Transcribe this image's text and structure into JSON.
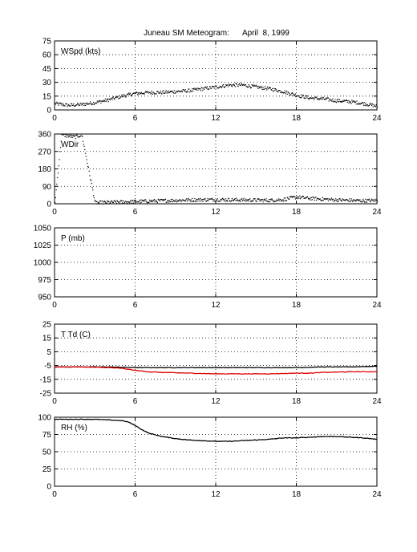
{
  "title": "Juneau SM Meteogram:      April  8, 1999",
  "chart_data": [
    {
      "type": "scatter",
      "label": "WSpd (kts)",
      "xlim": [
        0,
        24
      ],
      "xticks": [
        0,
        6,
        12,
        18,
        24
      ],
      "ylim": [
        0,
        75
      ],
      "yticks": [
        0,
        15,
        30,
        45,
        60,
        75
      ],
      "grid": true,
      "series": [
        {
          "color": "#000000",
          "x": [
            0,
            1,
            2,
            3,
            4,
            5,
            6,
            7,
            8,
            9,
            10,
            11,
            12,
            13,
            14,
            15,
            16,
            17,
            18,
            19,
            20,
            21,
            22,
            23,
            24
          ],
          "y": [
            7,
            5,
            6,
            8,
            11,
            15,
            18,
            19,
            19,
            20,
            21,
            23,
            25,
            27,
            27,
            25,
            23,
            20,
            16,
            13,
            12,
            10,
            9,
            7,
            4
          ]
        }
      ]
    },
    {
      "type": "scatter",
      "label": "WDir",
      "xlim": [
        0,
        24
      ],
      "xticks": [
        0,
        6,
        12,
        18,
        24
      ],
      "ylim": [
        0,
        360
      ],
      "yticks": [
        0,
        90,
        180,
        270,
        360
      ],
      "grid": true,
      "series": [
        {
          "color": "#000000",
          "x": [
            0,
            0.5,
            1,
            1.5,
            2,
            3,
            4,
            5,
            6,
            7,
            8,
            9,
            10,
            11,
            12,
            13,
            14,
            15,
            16,
            17,
            18,
            19,
            20,
            21,
            22,
            23,
            24
          ],
          "y": [
            5,
            355,
            350,
            345,
            355,
            5,
            8,
            10,
            12,
            14,
            16,
            18,
            20,
            21,
            22,
            21,
            20,
            19,
            18,
            22,
            35,
            28,
            24,
            20,
            18,
            16,
            18
          ]
        }
      ]
    },
    {
      "type": "line",
      "label": "P (mb)",
      "xlim": [
        0,
        24
      ],
      "xticks": [
        0,
        6,
        12,
        18,
        24
      ],
      "ylim": [
        950,
        1050
      ],
      "yticks": [
        950,
        975,
        1000,
        1025,
        1050
      ],
      "grid": true,
      "series": []
    },
    {
      "type": "line",
      "label": "T Td (C)",
      "xlim": [
        0,
        24
      ],
      "xticks": [
        0,
        6,
        12,
        18,
        24
      ],
      "ylim": [
        -25,
        25
      ],
      "yticks": [
        -25,
        -15,
        -5,
        5,
        15,
        25
      ],
      "grid": true,
      "series": [
        {
          "color": "#000000",
          "x": [
            0,
            2,
            4,
            6,
            8,
            10,
            12,
            14,
            16,
            18,
            20,
            22,
            24
          ],
          "y": [
            -6,
            -6,
            -6,
            -6.5,
            -6.5,
            -6.5,
            -6.5,
            -6.5,
            -6.5,
            -6.5,
            -6,
            -6,
            -5.5
          ]
        },
        {
          "color": "#e00000",
          "x": [
            0,
            2,
            4,
            5,
            6,
            7,
            8,
            10,
            12,
            13,
            14,
            16,
            18,
            19,
            20,
            22,
            24
          ],
          "y": [
            -6,
            -6,
            -6.5,
            -7,
            -8.5,
            -9.5,
            -10,
            -10.5,
            -11,
            -11,
            -11,
            -11,
            -10.5,
            -10.5,
            -10,
            -9.5,
            -9.5
          ]
        }
      ]
    },
    {
      "type": "line",
      "label": "RH (%)",
      "xlim": [
        0,
        24
      ],
      "xticks": [
        0,
        6,
        12,
        18,
        24
      ],
      "ylim": [
        0,
        100
      ],
      "yticks": [
        0,
        25,
        50,
        75,
        100
      ],
      "grid": true,
      "series": [
        {
          "color": "#000000",
          "x": [
            0,
            1,
            2,
            3,
            4,
            5,
            5.5,
            6,
            6.5,
            7,
            8,
            9,
            10,
            11,
            12,
            13,
            14,
            15,
            16,
            17,
            18,
            19,
            20,
            21,
            22,
            23,
            24
          ],
          "y": [
            97,
            97,
            97,
            97,
            96,
            95,
            93,
            88,
            82,
            77,
            72,
            69,
            67,
            66,
            65,
            65,
            66,
            67,
            68,
            70,
            70,
            71,
            72,
            72,
            71,
            70,
            68
          ]
        }
      ]
    }
  ]
}
